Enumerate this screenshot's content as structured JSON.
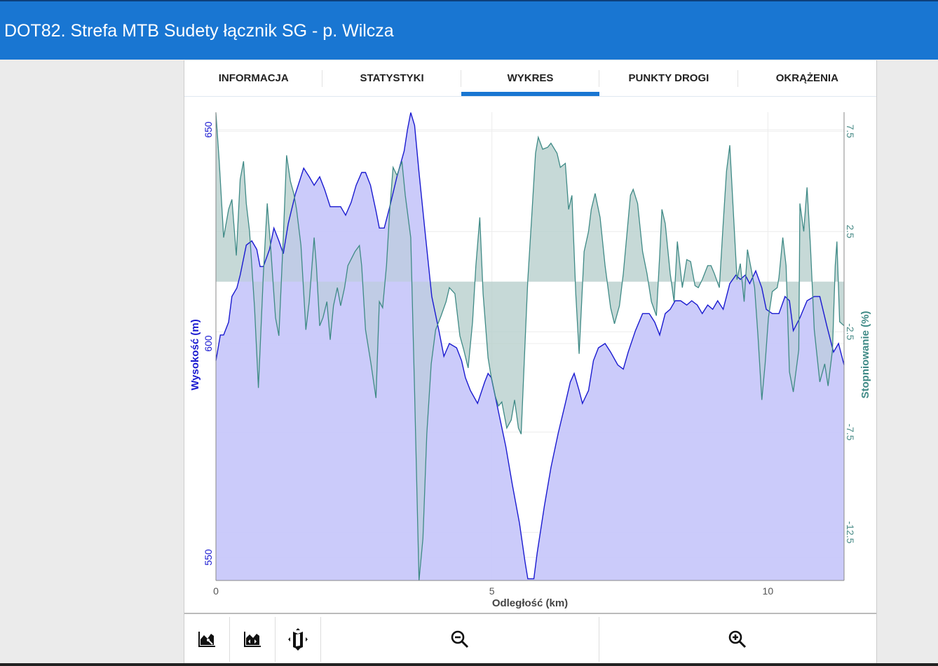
{
  "header": {
    "title": "DOT82. Strefa MTB Sudety łącznik SG - p. Wilcza"
  },
  "tabs": [
    {
      "label": "INFORMACJA",
      "active": false
    },
    {
      "label": "STATYSTYKI",
      "active": false
    },
    {
      "label": "WYKRES",
      "active": true
    },
    {
      "label": "PUNKTY DROGI",
      "active": false
    },
    {
      "label": "OKRĄŻENIA",
      "active": false
    }
  ],
  "colors": {
    "accent": "#1976d2",
    "elevation_line": "#1a1ad0",
    "elevation_fill": "#c8c8fa",
    "grade_line": "#3f8a86",
    "grade_fill": "#b5cfcc"
  },
  "toolbar": {
    "icons": [
      "chart-settings-icon",
      "chart-range-icon",
      "map-icon",
      "zoom-out-icon",
      "zoom-in-icon"
    ]
  },
  "chart_data": {
    "type": "area",
    "xlabel": "Odległość (km)",
    "ylabel": "Wysokość (m)",
    "y2label": "Stopniowanie (%)",
    "xlim": [
      0,
      11.38
    ],
    "ylim": [
      544.6,
      654.1
    ],
    "y2lim": [
      -14.9,
      8.45
    ],
    "xticks": [
      "0",
      "5",
      "10"
    ],
    "yticks": [
      "550",
      "600",
      "650"
    ],
    "y2ticks": [
      "7.5",
      "2.5",
      "-2.5",
      "-7.5",
      "-12.5"
    ],
    "grid": true,
    "series": [
      {
        "name": "Wysokość (m)",
        "axis": "left",
        "x": [
          0,
          0.08,
          0.14,
          0.23,
          0.29,
          0.38,
          0.44,
          0.55,
          0.65,
          0.74,
          0.8,
          0.86,
          0.97,
          1.05,
          1.14,
          1.22,
          1.31,
          1.44,
          1.59,
          1.69,
          1.78,
          1.88,
          1.97,
          2.07,
          2.16,
          2.26,
          2.35,
          2.45,
          2.54,
          2.64,
          2.71,
          2.8,
          2.9,
          2.96,
          3.05,
          3.15,
          3.28,
          3.41,
          3.47,
          3.53,
          3.6,
          3.68,
          3.79,
          3.91,
          4.04,
          4.13,
          4.23,
          4.36,
          4.45,
          4.52,
          4.61,
          4.74,
          4.87,
          4.93,
          4.99,
          5.12,
          5.25,
          5.37,
          5.5,
          5.6,
          5.65,
          5.76,
          5.82,
          5.95,
          6.07,
          6.2,
          6.33,
          6.42,
          6.49,
          6.58,
          6.64,
          6.75,
          6.84,
          6.93,
          7.05,
          7.15,
          7.28,
          7.38,
          7.47,
          7.6,
          7.73,
          7.85,
          7.95,
          8.04,
          8.14,
          8.23,
          8.32,
          8.42,
          8.53,
          8.62,
          8.72,
          8.81,
          8.91,
          9.0,
          9.09,
          9.19,
          9.31,
          9.42,
          9.5,
          9.59,
          9.67,
          9.78,
          9.89,
          9.97,
          10.08,
          10.2,
          10.31,
          10.39,
          10.46,
          10.58,
          10.71,
          10.84,
          10.94,
          11.07,
          11.19,
          11.28,
          11.38
        ],
        "y": [
          596,
          602,
          602,
          605,
          611,
          613,
          616,
          623,
          624,
          622,
          618,
          618,
          622,
          627,
          624,
          621,
          628,
          635,
          641,
          639,
          637,
          639,
          636,
          632,
          632,
          632,
          630,
          633,
          637,
          640,
          640,
          637,
          631,
          627,
          627,
          632,
          639,
          645,
          650,
          654,
          651,
          640,
          626,
          611,
          603,
          597,
          600,
          599,
          596,
          592,
          589,
          586,
          591,
          593,
          592,
          584,
          576,
          567,
          558,
          549,
          545,
          545,
          551,
          562,
          571,
          579,
          586,
          591,
          593,
          589,
          586,
          589,
          596,
          599,
          600,
          598,
          595,
          594,
          598,
          603,
          607,
          607,
          605,
          602,
          607,
          608,
          610,
          610,
          609,
          610,
          609,
          607,
          609,
          608,
          610,
          608,
          614,
          616,
          615,
          616,
          614,
          617,
          613,
          608,
          607,
          607,
          611,
          610,
          603,
          606,
          610,
          611,
          611,
          604,
          598,
          600,
          595
        ]
      },
      {
        "name": "Stopniowanie (%)",
        "axis": "right",
        "x": [
          0,
          0.06,
          0.14,
          0.23,
          0.29,
          0.37,
          0.44,
          0.5,
          0.55,
          0.61,
          0.7,
          0.77,
          0.86,
          0.93,
          0.99,
          1.08,
          1.14,
          1.22,
          1.28,
          1.35,
          1.41,
          1.46,
          1.54,
          1.63,
          1.69,
          1.78,
          1.82,
          1.88,
          1.94,
          2.01,
          2.07,
          2.13,
          2.2,
          2.26,
          2.33,
          2.39,
          2.52,
          2.6,
          2.64,
          2.71,
          2.81,
          2.9,
          2.96,
          3.02,
          3.09,
          3.15,
          3.21,
          3.28,
          3.37,
          3.43,
          3.53,
          3.6,
          3.68,
          3.75,
          3.82,
          3.9,
          3.98,
          4.08,
          4.17,
          4.23,
          4.33,
          4.42,
          4.49,
          4.57,
          4.65,
          4.71,
          4.78,
          4.84,
          4.93,
          4.99,
          5.06,
          5.12,
          5.18,
          5.27,
          5.35,
          5.41,
          5.48,
          5.53,
          5.6,
          5.65,
          5.73,
          5.79,
          5.84,
          5.92,
          6.01,
          6.07,
          6.18,
          6.24,
          6.33,
          6.39,
          6.45,
          6.52,
          6.58,
          6.67,
          6.75,
          6.8,
          6.87,
          6.96,
          7.05,
          7.15,
          7.22,
          7.31,
          7.38,
          7.45,
          7.51,
          7.56,
          7.64,
          7.73,
          7.81,
          7.89,
          7.98,
          8.04,
          8.08,
          8.14,
          8.23,
          8.3,
          8.36,
          8.45,
          8.53,
          8.6,
          8.68,
          8.74,
          8.81,
          8.91,
          8.97,
          9.03,
          9.12,
          9.19,
          9.25,
          9.31,
          9.38,
          9.44,
          9.5,
          9.57,
          9.63,
          9.7,
          9.76,
          9.82,
          9.89,
          9.95,
          10.01,
          10.08,
          10.17,
          10.2,
          10.27,
          10.33,
          10.39,
          10.46,
          10.56,
          10.58,
          10.65,
          10.71,
          10.77,
          10.84,
          10.94,
          11.03,
          11.09,
          11.17,
          11.22,
          11.25,
          11.3,
          11.38
        ],
        "y": [
          8.4,
          6.0,
          2.2,
          3.6,
          4.1,
          1.3,
          5.1,
          6.0,
          3.9,
          2.5,
          -1.3,
          -5.3,
          0.4,
          3.9,
          1.8,
          -1.8,
          -2.7,
          2.2,
          6.3,
          5.0,
          4.4,
          3.6,
          1.8,
          -2.4,
          -1.0,
          2.2,
          0.8,
          -2.2,
          -1.8,
          -1.0,
          -2.9,
          -1.2,
          -0.3,
          -1.2,
          -0.3,
          0.8,
          1.5,
          1.8,
          0.8,
          -2.4,
          -4.1,
          -5.8,
          -1.0,
          -1.3,
          0.8,
          3.6,
          5.7,
          5.3,
          6.0,
          4.3,
          2.2,
          -5.5,
          -14.9,
          -12.8,
          -7.6,
          -4.1,
          -2.4,
          -1.7,
          -1.0,
          -0.3,
          -0.6,
          -2.7,
          -3.4,
          -4.3,
          -2.0,
          0.8,
          3.2,
          -0.6,
          -3.8,
          -4.8,
          -5.7,
          -6.2,
          -6.0,
          -7.3,
          -6.9,
          -5.9,
          -7.3,
          -7.6,
          -3.1,
          0.1,
          3.6,
          6.4,
          7.2,
          6.6,
          6.7,
          6.9,
          6.4,
          5.7,
          5.9,
          3.6,
          4.3,
          -0.6,
          -3.6,
          1.5,
          2.5,
          3.6,
          4.4,
          3.2,
          0.8,
          -1.3,
          -2.1,
          -1.2,
          0.4,
          2.5,
          4.3,
          4.6,
          3.9,
          1.5,
          0.4,
          -1.0,
          -1.7,
          1.3,
          3.6,
          2.9,
          0.4,
          -1.0,
          2.0,
          -0.3,
          1.1,
          1.0,
          -0.2,
          -0.3,
          0.1,
          0.8,
          0.8,
          0.4,
          -0.3,
          2.9,
          5.5,
          6.8,
          3.2,
          0.1,
          0.9,
          -1.0,
          1.6,
          0.6,
          -0.3,
          -2.7,
          -5.9,
          -4.1,
          -1.8,
          -0.5,
          -0.3,
          0.2,
          2.2,
          0.8,
          -4.5,
          -5.5,
          -3.4,
          3.9,
          2.5,
          4.7,
          1.8,
          -2.4,
          -5.0,
          -4.1,
          -5.2,
          -3.4,
          0.8,
          2.0,
          -2.0,
          -2.2
        ]
      }
    ]
  }
}
